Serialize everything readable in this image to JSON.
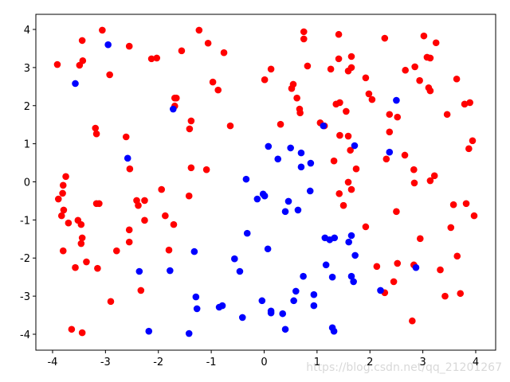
{
  "chart_data": {
    "type": "scatter",
    "watermark": "https://blog.csdn.net/qq_21201267",
    "xlim": [
      -4.316,
      4.377
    ],
    "ylim": [
      -4.418,
      4.397
    ],
    "xticks": [
      -4,
      -3,
      -2,
      -1,
      0,
      1,
      2,
      3,
      4
    ],
    "yticks": [
      -4,
      -3,
      -2,
      -1,
      0,
      1,
      2,
      3,
      4
    ],
    "series": [
      {
        "color": "#ff0000",
        "x": [
          -3.91,
          -3.44,
          -3.43,
          -3.49,
          -3.06,
          -2.92,
          -2.55,
          -2.13,
          -2.03,
          -1.56,
          -1.23,
          -1.06,
          -0.76,
          -0.97,
          -0.87,
          -1.69,
          -1.66,
          -1.69,
          -1.38,
          -1.41,
          -0.64,
          -3.19,
          -3.17,
          -2.61,
          -2.54,
          -1.38,
          -1.09,
          -3.8,
          -3.75,
          -3.81,
          -3.89,
          -3.79,
          -3.83,
          -3.7,
          -3.52,
          -3.46,
          -3.46,
          -3.44,
          -3.8,
          -3.36,
          -3.57,
          -3.15,
          -3.17,
          -3.12,
          -2.41,
          -2.38,
          -2.26,
          -1.94,
          -2.26,
          -1.87,
          -1.71,
          -1.42,
          -2.55,
          -2.55,
          -2.79,
          -1.8,
          -2.33,
          -2.9,
          -3.64,
          -3.44,
          0.01,
          0.13,
          0.31,
          0.52,
          0.55,
          0.62,
          0.67,
          0.68,
          0.75,
          0.75,
          0.82,
          1.41,
          1.41,
          1.65,
          1.65,
          1.59,
          1.26,
          1.92,
          1.98,
          2.04,
          2.28,
          1.36,
          1.43,
          1.06,
          1.14,
          1.55,
          1.59,
          1.43,
          1.63,
          1.32,
          1.74,
          1.59,
          1.42,
          1.65,
          1.5,
          1.92,
          2.37,
          2.52,
          2.37,
          2.31,
          2.66,
          2.5,
          2.83,
          2.84,
          2.67,
          2.85,
          2.94,
          3.02,
          3.08,
          3.14,
          3.25,
          3.11,
          3.14,
          3.22,
          3.14,
          3.46,
          3.64,
          3.79,
          3.89,
          3.87,
          3.94,
          3.58,
          3.82,
          3.97,
          3.53,
          2.95,
          3.65,
          3.33,
          3.42,
          3.71,
          2.83,
          2.52,
          2.45,
          2.13,
          2.28,
          2.8
        ],
        "y": [
          3.08,
          3.71,
          3.18,
          3.06,
          3.98,
          2.81,
          3.56,
          3.23,
          3.25,
          3.44,
          3.98,
          3.64,
          3.39,
          2.62,
          2.41,
          2.2,
          2.2,
          1.99,
          1.6,
          1.39,
          1.47,
          1.41,
          1.26,
          1.18,
          0.34,
          0.37,
          0.32,
          -0.09,
          0.14,
          -0.3,
          -0.45,
          -0.74,
          -0.89,
          -1.08,
          -1.01,
          -1.12,
          -1.62,
          -1.47,
          -1.81,
          -2.1,
          -2.25,
          -2.27,
          -0.57,
          -0.57,
          -0.49,
          -0.62,
          -0.49,
          -0.2,
          -1.01,
          -0.89,
          -1.12,
          -0.37,
          -1.26,
          -1.58,
          -1.81,
          -1.79,
          -2.85,
          -3.14,
          -3.87,
          -3.96,
          2.68,
          2.96,
          1.51,
          2.45,
          2.56,
          2.2,
          1.91,
          1.81,
          3.94,
          3.75,
          3.04,
          3.87,
          3.23,
          3.29,
          3.0,
          2.91,
          2.96,
          2.73,
          2.31,
          2.16,
          3.77,
          2.04,
          2.08,
          1.55,
          1.47,
          1.85,
          1.2,
          1.22,
          0.83,
          0.55,
          0.34,
          -0.01,
          -0.31,
          -0.2,
          -0.62,
          -1.18,
          1.77,
          1.7,
          1.31,
          0.6,
          0.7,
          -0.78,
          0.32,
          -0.03,
          2.93,
          3.02,
          2.66,
          3.83,
          3.27,
          3.25,
          3.65,
          2.47,
          2.39,
          0.16,
          0.03,
          1.77,
          2.7,
          2.04,
          2.08,
          0.87,
          1.08,
          -0.6,
          -0.57,
          -0.89,
          -1.2,
          -1.49,
          -1.95,
          -2.31,
          -3.0,
          -2.93,
          -2.18,
          -2.14,
          -2.62,
          -2.22,
          -2.91,
          -3.65
        ]
      },
      {
        "color": "#0000ff",
        "x": [
          -2.95,
          -3.57,
          -1.72,
          -2.58,
          -2.36,
          -1.78,
          -1.32,
          -1.29,
          -1.27,
          -0.85,
          -0.79,
          -2.18,
          -1.42,
          -0.41,
          -0.56,
          -0.46,
          -0.32,
          -0.34,
          -0.13,
          -0.02,
          0.01,
          0.08,
          0.26,
          0.5,
          0.7,
          0.7,
          0.88,
          0.46,
          0.4,
          0.64,
          0.87,
          0.07,
          -0.04,
          0.13,
          0.13,
          0.35,
          0.4,
          0.56,
          0.6,
          0.74,
          0.94,
          0.94,
          1.12,
          1.71,
          1.15,
          1.24,
          1.33,
          1.65,
          1.6,
          1.72,
          1.17,
          1.29,
          1.65,
          1.69,
          1.29,
          1.32,
          2.2,
          2.37,
          2.5,
          2.87
        ],
        "y": [
          3.6,
          2.58,
          1.91,
          0.62,
          -2.35,
          -2.33,
          -1.83,
          -3.02,
          -3.33,
          -3.29,
          -3.25,
          -3.92,
          -3.98,
          -3.56,
          -2.02,
          -2.35,
          -1.35,
          0.07,
          -0.45,
          -0.32,
          -0.37,
          0.93,
          0.6,
          0.89,
          0.76,
          0.39,
          0.49,
          -0.51,
          -0.78,
          -0.74,
          -0.24,
          -1.76,
          -3.12,
          -3.39,
          -3.44,
          -3.46,
          -3.87,
          -3.12,
          -2.87,
          -2.48,
          -2.96,
          -3.25,
          1.47,
          0.95,
          -1.47,
          -1.52,
          -1.47,
          -1.41,
          -1.58,
          -1.93,
          -2.18,
          -2.5,
          -2.48,
          -2.62,
          -3.83,
          -3.92,
          -2.85,
          0.78,
          2.14,
          -2.25
        ]
      }
    ]
  }
}
